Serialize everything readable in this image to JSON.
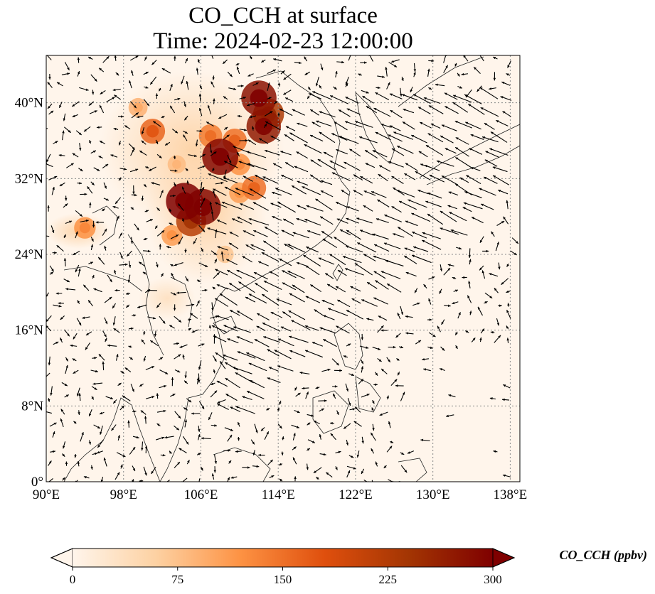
{
  "title": {
    "line1": "CO_CCH at surface",
    "line2": "Time: 2024-02-23 12:00:00"
  },
  "map": {
    "extent": {
      "lon": [
        90,
        139
      ],
      "lat": [
        0,
        45
      ]
    },
    "lon_ticks": [
      {
        "value": 90,
        "label": "90°E"
      },
      {
        "value": 98,
        "label": "98°E"
      },
      {
        "value": 106,
        "label": "106°E"
      },
      {
        "value": 114,
        "label": "114°E"
      },
      {
        "value": 122,
        "label": "122°E"
      },
      {
        "value": 130,
        "label": "130°E"
      },
      {
        "value": 138,
        "label": "138°E"
      }
    ],
    "lat_ticks": [
      {
        "value": 0,
        "label": "0°"
      },
      {
        "value": 8,
        "label": "8°N"
      },
      {
        "value": 16,
        "label": "16°N"
      },
      {
        "value": 24,
        "label": "24°N"
      },
      {
        "value": 32,
        "label": "32°N"
      },
      {
        "value": 40,
        "label": "40°N"
      }
    ],
    "gridlines": "dotted",
    "colormap": [
      "#fff5eb",
      "#fdd1a2",
      "#fd9243",
      "#df4f0d",
      "#a33503",
      "#7f0000"
    ],
    "background_color": "#fff5eb",
    "hotspots": [
      {
        "lon": 104.3,
        "lat": 29.6,
        "value": 300
      },
      {
        "lon": 106.2,
        "lat": 29.0,
        "value": 290
      },
      {
        "lon": 108.0,
        "lat": 34.3,
        "value": 290
      },
      {
        "lon": 112.5,
        "lat": 37.5,
        "value": 270
      },
      {
        "lon": 112.0,
        "lat": 40.5,
        "value": 280
      },
      {
        "lon": 113.0,
        "lat": 38.8,
        "value": 230
      },
      {
        "lon": 105.0,
        "lat": 27.5,
        "value": 220
      },
      {
        "lon": 101.0,
        "lat": 37.0,
        "value": 160
      },
      {
        "lon": 107.0,
        "lat": 36.5,
        "value": 140
      },
      {
        "lon": 109.5,
        "lat": 36.0,
        "value": 150
      },
      {
        "lon": 110.0,
        "lat": 33.5,
        "value": 120
      },
      {
        "lon": 111.5,
        "lat": 31.0,
        "value": 150
      },
      {
        "lon": 94.0,
        "lat": 26.8,
        "value": 120
      },
      {
        "lon": 103.0,
        "lat": 26.0,
        "value": 110
      },
      {
        "lon": 108.5,
        "lat": 24.0,
        "value": 70
      },
      {
        "lon": 99.5,
        "lat": 39.5,
        "value": 90
      },
      {
        "lon": 110.0,
        "lat": 30.5,
        "value": 110
      },
      {
        "lon": 103.5,
        "lat": 33.5,
        "value": 80
      }
    ]
  },
  "colorbar": {
    "label": "CO_CCH (ppbv)",
    "ticks": [
      {
        "value": 0,
        "label": "0"
      },
      {
        "value": 75,
        "label": "75"
      },
      {
        "value": 150,
        "label": "150"
      },
      {
        "value": 225,
        "label": "225"
      },
      {
        "value": 300,
        "label": "300"
      }
    ],
    "vmin": 0,
    "vmax": 300,
    "extend": "both"
  }
}
